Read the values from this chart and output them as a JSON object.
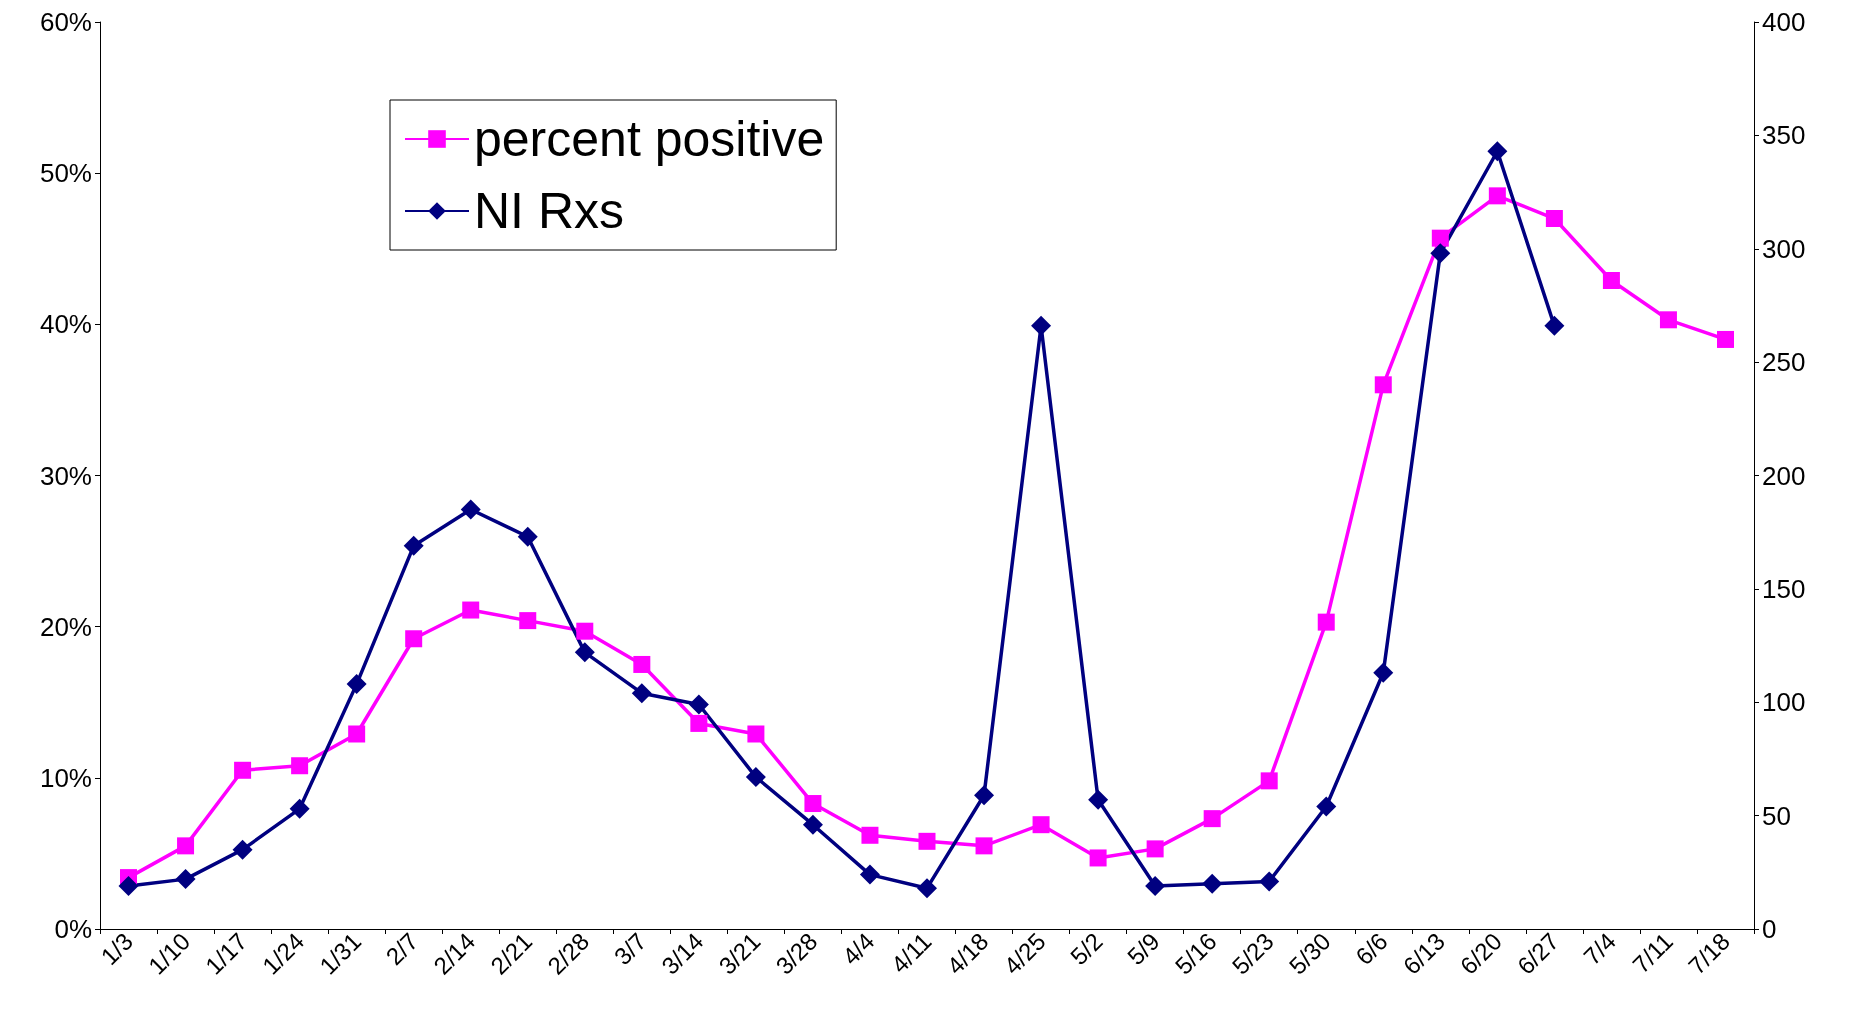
{
  "chart_data": {
    "type": "line",
    "categories": [
      "1/3",
      "1/10",
      "1/17",
      "1/24",
      "1/31",
      "2/7",
      "2/14",
      "2/21",
      "2/28",
      "3/7",
      "3/14",
      "3/21",
      "3/28",
      "4/4",
      "4/11",
      "4/18",
      "4/25",
      "5/2",
      "5/9",
      "5/16",
      "5/23",
      "5/30",
      "6/6",
      "6/13",
      "6/20",
      "6/27",
      "7/4",
      "7/11",
      "7/18"
    ],
    "series": [
      {
        "name": "percent positive",
        "color": "#ff00ff",
        "marker": "square",
        "values": [
          3.4,
          5.5,
          10.5,
          10.8,
          12.9,
          19.2,
          21.1,
          20.4,
          19.7,
          17.5,
          13.6,
          12.9,
          8.3,
          6.2,
          5.8,
          5.5,
          6.9,
          4.7,
          5.3,
          7.3,
          9.8,
          20.3,
          36.0,
          45.7,
          48.5,
          47.0,
          42.9,
          40.3,
          39.0
        ]
      },
      {
        "name": "NI Rxs",
        "color": "#000080",
        "marker": "diamond",
        "axis": "y2",
        "values": [
          19,
          22,
          35,
          53,
          108,
          169,
          185,
          173,
          122,
          104,
          99,
          67,
          46,
          24,
          18,
          59,
          266,
          57,
          19,
          20,
          21,
          54,
          113,
          298,
          343,
          266,
          null,
          null,
          null
        ]
      }
    ],
    "ylim": [
      0,
      60
    ],
    "yticks": [
      {
        "value": 0,
        "label": "0%"
      },
      {
        "value": 10,
        "label": "10%"
      },
      {
        "value": 20,
        "label": "20%"
      },
      {
        "value": 30,
        "label": "30%"
      },
      {
        "value": 40,
        "label": "40%"
      },
      {
        "value": 50,
        "label": "50%"
      },
      {
        "value": 60,
        "label": "60%"
      }
    ],
    "y2lim": [
      0,
      400
    ],
    "y2ticks": [
      0,
      50,
      100,
      150,
      200,
      250,
      300,
      350,
      400
    ],
    "grid": false,
    "legend": "top left",
    "line_style": "solid"
  }
}
